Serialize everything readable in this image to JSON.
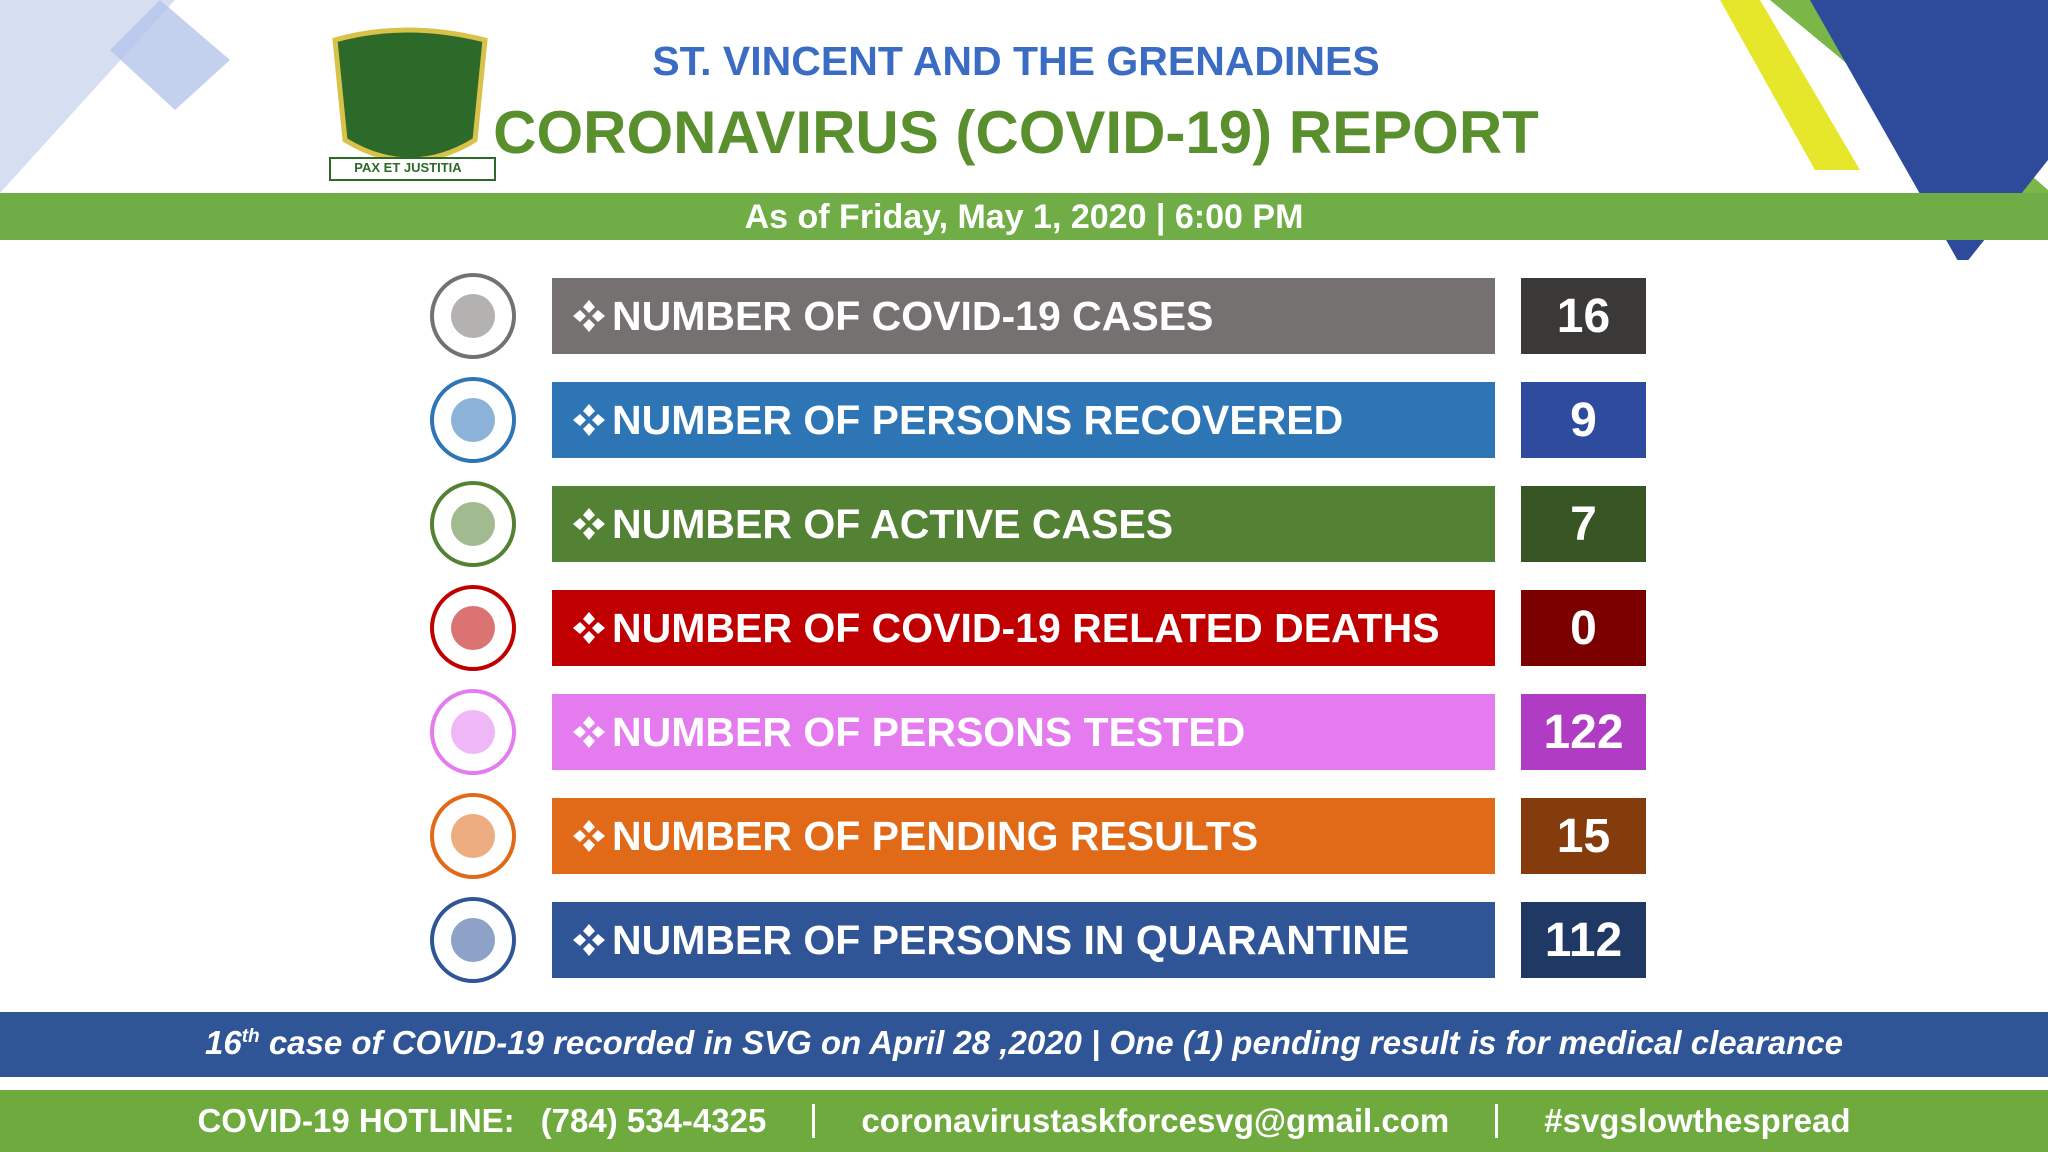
{
  "header": {
    "line1": "ST. VINCENT AND THE GRENADINES",
    "line2": "CORONAVIRUS (COVID-19) REPORT",
    "motto": "PAX ET JUSTITIA",
    "date": "As of Friday, May 1, 2020 | 6:00 PM"
  },
  "rows": [
    {
      "label": "NUMBER OF COVID-19 CASES",
      "value": 16,
      "color": "#767171",
      "value_color": "#3b3838"
    },
    {
      "label": "NUMBER OF PERSONS RECOVERED",
      "value": 9,
      "color": "#2e75b6",
      "value_color": "#2f4b9e"
    },
    {
      "label": "NUMBER OF ACTIVE CASES",
      "value": 7,
      "color": "#548235",
      "value_color": "#375623"
    },
    {
      "label": "NUMBER OF COVID-19 RELATED DEATHS",
      "value": 0,
      "color": "#c00000",
      "value_color": "#7b0000"
    },
    {
      "label": "NUMBER OF PERSONS TESTED",
      "value": 122,
      "color": "#e47bee",
      "value_color": "#b03cc4"
    },
    {
      "label": "NUMBER OF PENDING RESULTS",
      "value": 15,
      "color": "#e06a17",
      "value_color": "#843c0c"
    },
    {
      "label": "NUMBER OF PERSONS IN QUARANTINE",
      "value": 112,
      "color": "#2f5597",
      "value_color": "#1f3864"
    }
  ],
  "note": {
    "number": "16",
    "suffix": "th",
    "text": "case of COVID-19 recorded in SVG on April 28 ,2020 | One (1) pending result is for medical clearance"
  },
  "footer": {
    "hotline_label": "COVID-19 HOTLINE:",
    "hotline": "(784) 534-4325",
    "email": "coronavirustaskforcesvg@gmail.com",
    "hashtag": "#svgslowthespread"
  }
}
